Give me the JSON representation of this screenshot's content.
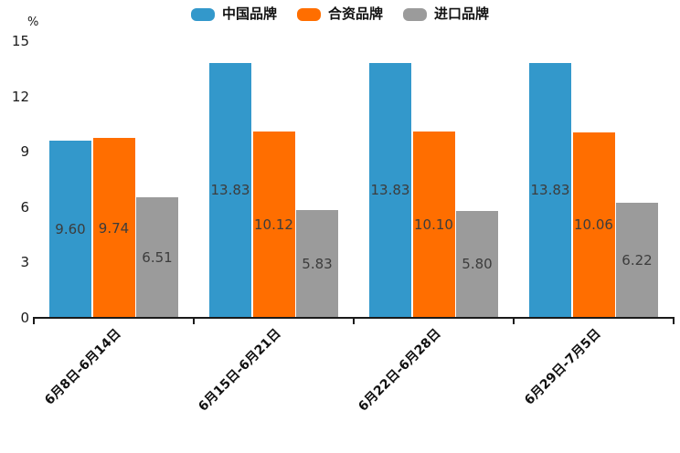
{
  "chart_data": {
    "type": "bar",
    "title": "",
    "xlabel": "",
    "ylabel": "%",
    "categories": [
      "6月8日-6月14日",
      "6月15日-6月21日",
      "6月22日-6月28日",
      "6月29日-7月5日"
    ],
    "series": [
      {
        "name": "中国品牌",
        "color": "#3398CB",
        "values": [
          9.6,
          13.83,
          13.83,
          13.83
        ]
      },
      {
        "name": "合资品牌",
        "color": "#FF6E00",
        "values": [
          9.74,
          10.12,
          10.1,
          10.06
        ]
      },
      {
        "name": "进口品牌",
        "color": "#9B9B9B",
        "values": [
          6.51,
          5.83,
          5.8,
          6.22
        ]
      }
    ],
    "value_label_decimals": 2,
    "ylim": [
      0,
      15
    ],
    "yticks": [
      0,
      3,
      6,
      9,
      12,
      15
    ],
    "legend_position": "top-center",
    "grid": false,
    "colors": {
      "axis": "#1a1a1a",
      "bar_label_text": "#3c3c3c",
      "tick_label_text": "#1a1a1a",
      "background": "#ffffff"
    }
  }
}
